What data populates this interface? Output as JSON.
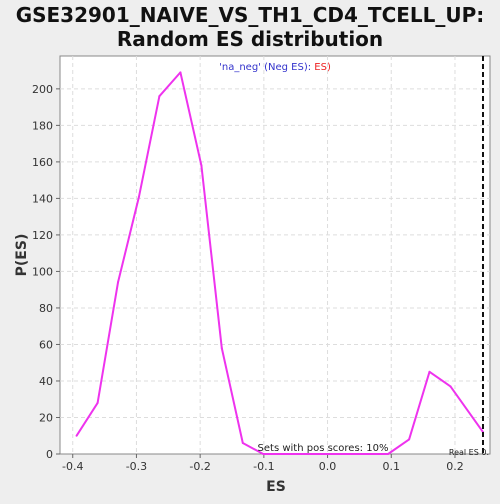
{
  "chart_data": {
    "type": "line",
    "title_line1": "GSE32901_NAIVE_VS_TH1_CD4_TCELL_UP:",
    "title_line2": "Random ES distribution",
    "xlabel": "ES",
    "ylabel": "P(ES)",
    "xlim": [
      -0.42,
      0.255
    ],
    "ylim": [
      0,
      218
    ],
    "xticks": [
      -0.4,
      -0.3,
      -0.2,
      -0.1,
      0.0,
      0.1,
      0.2
    ],
    "xtick_labels": [
      "-0.4",
      "-0.3",
      "-0.2",
      "-0.1",
      "0.0",
      "0.1",
      "0.2"
    ],
    "yticks": [
      0,
      20,
      40,
      60,
      80,
      100,
      120,
      140,
      160,
      180,
      200
    ],
    "ytick_labels": [
      "0",
      "20",
      "40",
      "60",
      "80",
      "100",
      "120",
      "140",
      "160",
      "180",
      "200"
    ],
    "grid": true,
    "legend": {
      "open": "'na_neg' ",
      "neg": "(Neg ES)",
      "sep": ": ",
      "pos": "ES)",
      "neg_color": "#3333cc",
      "pos_color": "#ee2222"
    },
    "series": [
      {
        "color": "#ee33ee",
        "x": [
          -0.394,
          -0.361,
          -0.329,
          -0.296,
          -0.264,
          -0.231,
          -0.198,
          -0.166,
          -0.133,
          -0.101,
          -0.068,
          -0.035,
          -0.003,
          0.03,
          0.063,
          0.095,
          0.128,
          0.16,
          0.193,
          0.244
        ],
        "y": [
          10,
          28,
          94,
          141,
          196,
          209,
          158,
          58,
          6,
          0,
          0,
          0,
          0,
          0,
          0,
          0,
          8,
          45,
          37,
          12
        ]
      }
    ],
    "real_es": 0.244,
    "annotation": "Sets with pos scores: 10%",
    "real_es_label": "Real ES 0."
  }
}
